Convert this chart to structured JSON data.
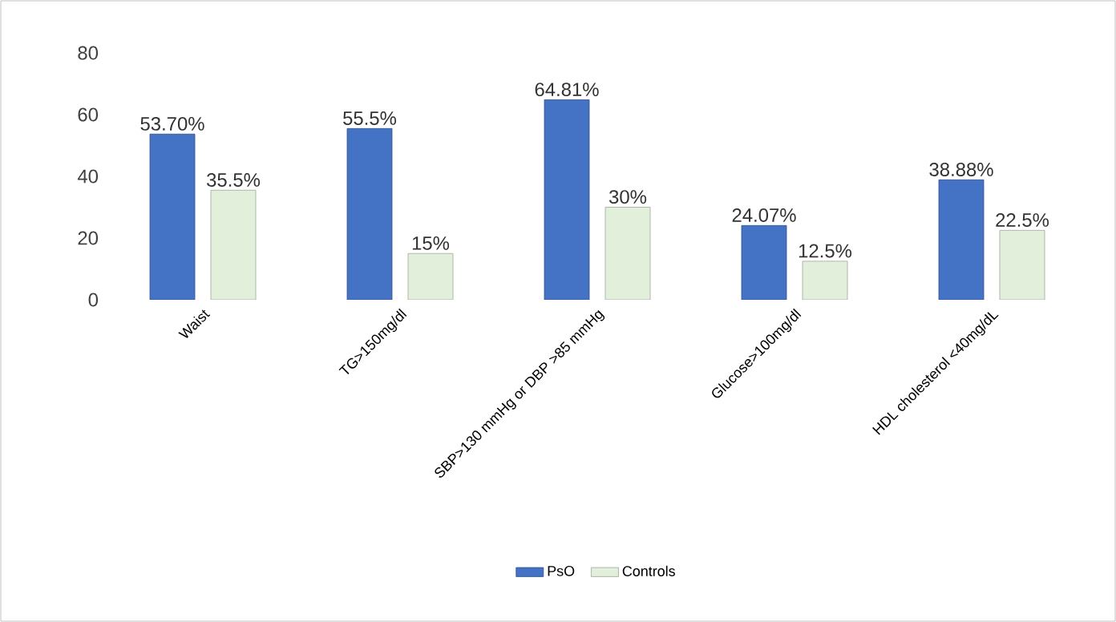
{
  "chart_data": {
    "type": "bar",
    "categories": [
      "Waist",
      "TG>150mg/dl",
      "SBP>130 mmHg or DBP >85 mmHg",
      "Glucose>100mg/dl",
      "HDL cholesterol <40mg/dL"
    ],
    "series": [
      {
        "name": "PsO",
        "color": "#4472c4",
        "values": [
          53.7,
          55.5,
          64.81,
          24.07,
          38.88
        ],
        "value_labels": [
          "53.70%",
          "55.5%",
          "64.81%",
          "24.07%",
          "38.88%"
        ]
      },
      {
        "name": "Controls",
        "color": "#e2efda",
        "values": [
          35.5,
          15,
          30,
          12.5,
          22.5
        ],
        "value_labels": [
          "35.5%",
          "15%",
          "30%",
          "12.5%",
          "22.5%"
        ]
      }
    ],
    "ylim": [
      0,
      80
    ],
    "yticks": [
      0,
      20,
      40,
      60,
      80
    ],
    "grid": false,
    "legend": "bottom"
  }
}
